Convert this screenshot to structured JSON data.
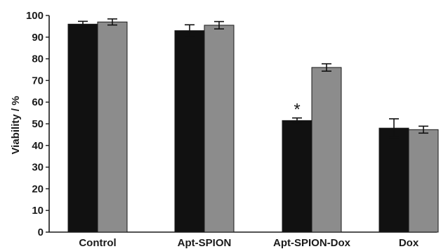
{
  "chart_data": {
    "type": "bar",
    "title": "",
    "xlabel": "",
    "ylabel": "Viability / %",
    "ylim": [
      0,
      100
    ],
    "yticks": [
      0,
      10,
      20,
      30,
      40,
      50,
      60,
      70,
      80,
      90,
      100
    ],
    "grid": false,
    "legend": "none",
    "categories": [
      "Control",
      "Apt-SPION",
      "Apt-SPION-Dox",
      "Dox"
    ],
    "series": [
      {
        "values": [
          96,
          93,
          51.5,
          48
        ],
        "errors": [
          1.3,
          2.7,
          1.2,
          4.3
        ],
        "color": "#111111"
      },
      {
        "values": [
          97,
          95.5,
          76,
          47.3
        ],
        "errors": [
          1.4,
          1.7,
          1.7,
          1.6
        ],
        "color": "#8c8c8c"
      }
    ],
    "annotations": [
      {
        "text": "*",
        "category": "Apt-SPION-Dox",
        "series": 0
      }
    ]
  }
}
